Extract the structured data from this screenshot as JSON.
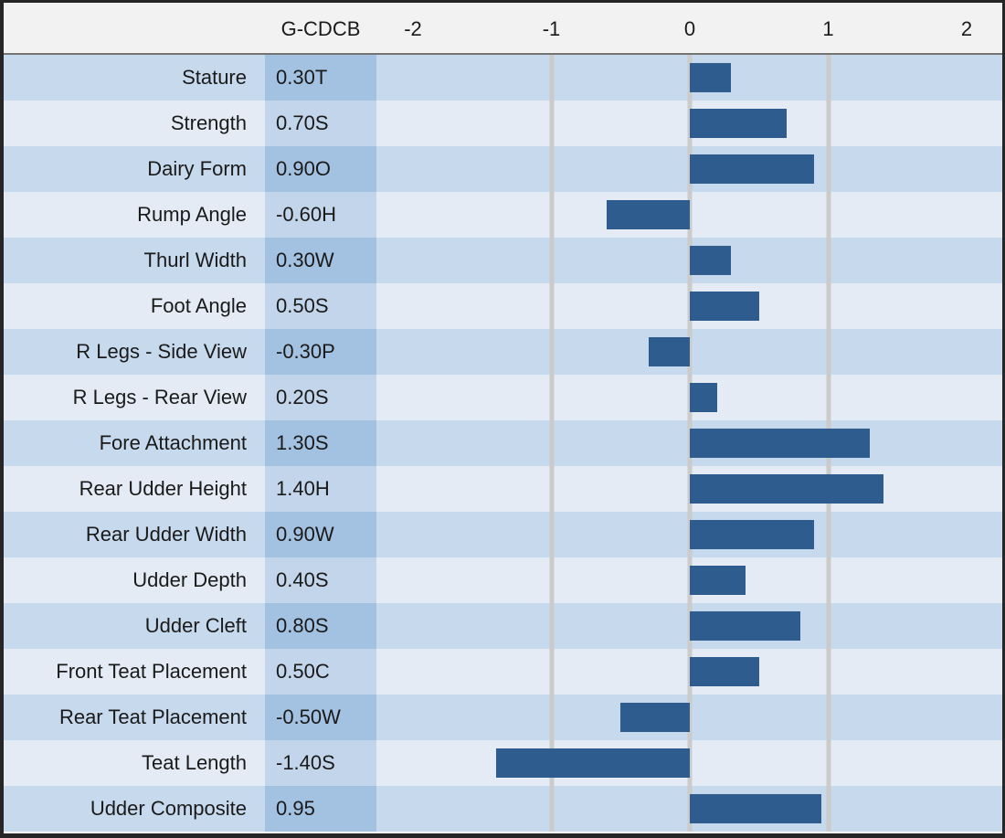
{
  "header": {
    "corner_label": "",
    "value_col_label": "G-CDCB"
  },
  "chart_data": {
    "type": "bar",
    "orientation": "horizontal",
    "title": "",
    "xlabel": "",
    "ylabel": "",
    "categories": [
      "Stature",
      "Strength",
      "Dairy Form",
      "Rump Angle",
      "Thurl Width",
      "Foot Angle",
      "R Legs - Side View",
      "R Legs - Rear View",
      "Fore Attachment",
      "Rear Udder Height",
      "Rear Udder Width",
      "Udder Depth",
      "Udder Cleft",
      "Front Teat Placement",
      "Rear Teat Placement",
      "Teat Length",
      "Udder Composite"
    ],
    "values": [
      0.3,
      0.7,
      0.9,
      -0.6,
      0.3,
      0.5,
      -0.3,
      0.2,
      1.3,
      1.4,
      0.9,
      0.4,
      0.8,
      0.5,
      -0.5,
      -1.4,
      0.95
    ],
    "value_labels": [
      "0.30T",
      "0.70S",
      "0.90O",
      "-0.60H",
      "0.30W",
      "0.50S",
      "-0.30P",
      "0.20S",
      "1.30S",
      "1.40H",
      "0.90W",
      "0.40S",
      "0.80S",
      "0.50C",
      "-0.50W",
      "-1.40S",
      "0.95"
    ],
    "axis_ticks": [
      "-2",
      "-1",
      "0",
      "1",
      "2"
    ],
    "gridlines_at": [
      -1,
      0,
      1
    ],
    "xlim": [
      -2.26,
      2.23
    ],
    "legend": "none",
    "grid": "vertical-only"
  },
  "colors": {
    "bar": "#2e5c8e",
    "border": "#262626",
    "header_bg": "#f2f2f2",
    "header_divider": "#757575",
    "row_odd_bg": "#c6d9ed",
    "row_even_bg": "#e4ebf5",
    "value_odd_bg": "#a3c2e1",
    "value_even_bg": "#c2d5eb",
    "gridline": "#cbcbcb",
    "text": "#1a1a1a"
  }
}
